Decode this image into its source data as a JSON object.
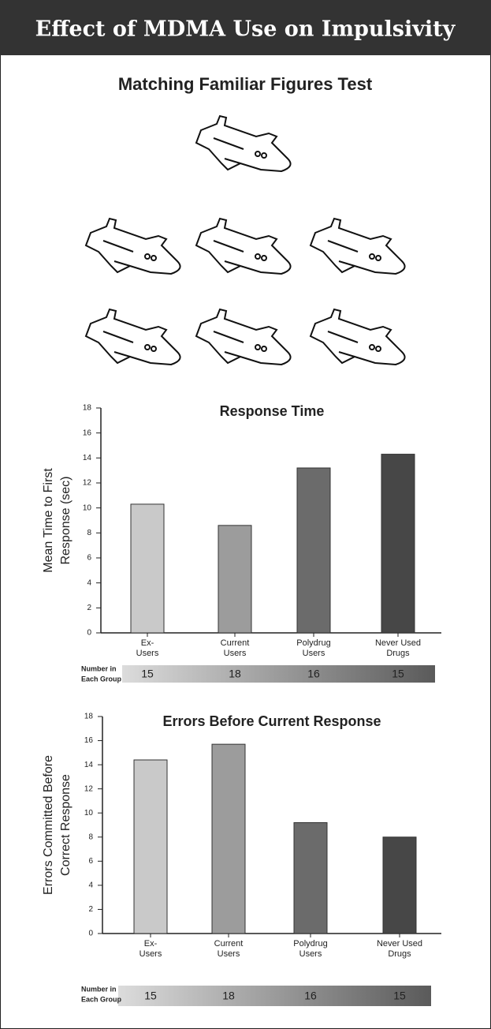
{
  "header": {
    "title": "Effect of MDMA Use on Impulsivity",
    "subtitle": "Matching Familiar Figures Test"
  },
  "chart_data": [
    {
      "type": "bar",
      "title": "Response Time",
      "ylabel": [
        "Mean Time to First",
        "Response (sec)"
      ],
      "categories": [
        [
          "Ex-",
          "Users"
        ],
        [
          "Current",
          "Users"
        ],
        [
          "Polydrug",
          "Users"
        ],
        [
          "Never Used",
          "Drugs"
        ]
      ],
      "values": [
        10.3,
        8.6,
        13.2,
        14.3
      ],
      "colors": [
        "#c9c9c9",
        "#9c9c9c",
        "#6b6b6b",
        "#474747"
      ],
      "ylim": [
        0,
        18
      ],
      "yticks": [
        0,
        2,
        4,
        6,
        8,
        10,
        12,
        14,
        16,
        18
      ],
      "group_label": [
        "Number in",
        "Each Group"
      ],
      "group_sizes": [
        15,
        18,
        16,
        15
      ]
    },
    {
      "type": "bar",
      "title": "Errors Before Current Response",
      "ylabel": [
        "Errors Committed Before",
        "Correct Response"
      ],
      "categories": [
        [
          "Ex-",
          "Users"
        ],
        [
          "Current",
          "Users"
        ],
        [
          "Polydrug",
          "Users"
        ],
        [
          "Never Used",
          "Drugs"
        ]
      ],
      "values": [
        14.4,
        15.7,
        9.2,
        8.0
      ],
      "colors": [
        "#c9c9c9",
        "#9c9c9c",
        "#6b6b6b",
        "#474747"
      ],
      "ylim": [
        0,
        18
      ],
      "yticks": [
        0,
        2,
        4,
        6,
        8,
        10,
        12,
        14,
        16,
        18
      ],
      "group_label": [
        "Number in",
        "Each Group"
      ],
      "group_sizes": [
        15,
        18,
        16,
        15
      ]
    }
  ]
}
